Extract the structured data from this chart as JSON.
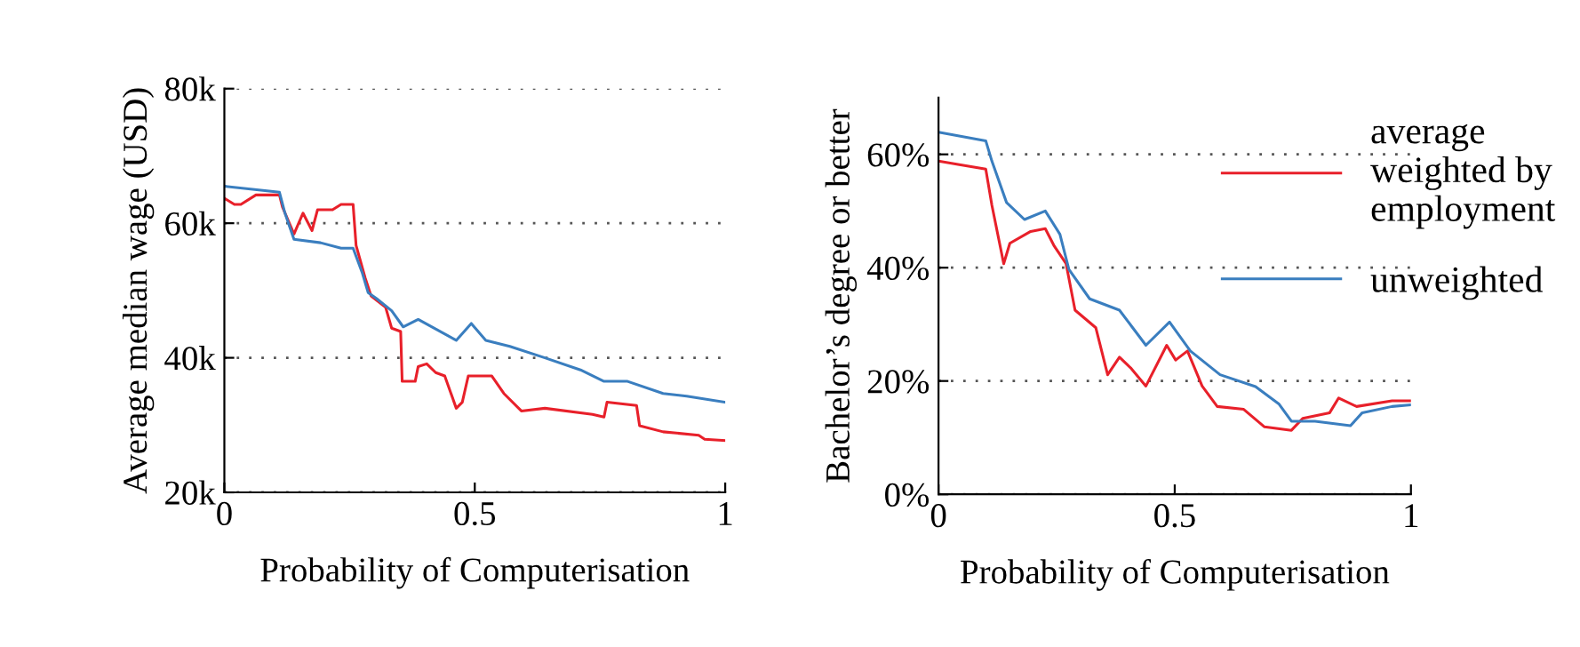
{
  "chart_data": [
    {
      "type": "line",
      "xlabel": "Probability of Computerisation",
      "ylabel": "Average median wage (USD)",
      "xlim": [
        0,
        1
      ],
      "xticks": [
        0,
        {
          "value": 0.5,
          "label": "0.5"
        },
        1
      ],
      "ylim": [
        20,
        80
      ],
      "yticks": [
        {
          "value": 20,
          "label": "20k"
        },
        {
          "value": 40,
          "label": "40k"
        },
        {
          "value": 60,
          "label": "60k"
        },
        {
          "value": 80,
          "label": "80k"
        }
      ],
      "grid": "y",
      "legend": false,
      "series": [
        {
          "color": "#e8202a",
          "x": [
            0,
            0.02,
            0.033,
            0.063,
            0.11,
            0.116,
            0.139,
            0.157,
            0.175,
            0.186,
            0.216,
            0.233,
            0.257,
            0.263,
            0.281,
            0.293,
            0.322,
            0.334,
            0.352,
            0.355,
            0.381,
            0.387,
            0.404,
            0.422,
            0.44,
            0.463,
            0.475,
            0.487,
            0.534,
            0.558,
            0.593,
            0.64,
            0.735,
            0.758,
            0.764,
            0.823,
            0.829,
            0.876,
            0.947,
            0.959,
            1
          ],
          "values": [
            63.7,
            62.8,
            62.8,
            64.2,
            64.2,
            62.4,
            58.4,
            61.5,
            58.9,
            62,
            62,
            62.8,
            62.8,
            56.7,
            51.9,
            49.2,
            47.5,
            44.4,
            43.9,
            36.5,
            36.5,
            38.7,
            39.1,
            37.8,
            37.3,
            32.5,
            33.4,
            37.3,
            37.3,
            34.7,
            32.1,
            32.5,
            31.6,
            31.2,
            33.4,
            32.9,
            29.9,
            29,
            28.5,
            27.9,
            27.7
          ]
        },
        {
          "color": "#3a7ebf",
          "x": [
            0,
            0.11,
            0.121,
            0.139,
            0.192,
            0.233,
            0.257,
            0.275,
            0.287,
            0.304,
            0.334,
            0.357,
            0.387,
            0.463,
            0.493,
            0.522,
            0.57,
            0.64,
            0.711,
            0.758,
            0.805,
            0.876,
            0.923,
            1
          ],
          "values": [
            65.5,
            64.6,
            61.5,
            57.6,
            57.1,
            56.3,
            56.3,
            52.7,
            49.7,
            48.8,
            47,
            44.6,
            45.7,
            42.6,
            45.1,
            42.6,
            41.7,
            40,
            38.2,
            36.5,
            36.5,
            34.7,
            34.3,
            33.4
          ]
        }
      ]
    },
    {
      "type": "line",
      "xlabel": "Probability of Computerisation",
      "ylabel": "Bachelor’s degree or better",
      "xlim": [
        0,
        1
      ],
      "xticks": [
        0,
        {
          "value": 0.5,
          "label": "0.5"
        },
        1
      ],
      "ylim": [
        0,
        70
      ],
      "yticks": [
        {
          "value": 0,
          "label": "0%"
        },
        {
          "value": 20,
          "label": "20%"
        },
        {
          "value": 40,
          "label": "40%"
        },
        {
          "value": 60,
          "label": "60%"
        }
      ],
      "grid": "y",
      "legend": "right",
      "series": [
        {
          "name": "average\nweighted by\nemployment",
          "color": "#e8202a",
          "x": [
            0,
            0.044,
            0.1,
            0.113,
            0.138,
            0.151,
            0.195,
            0.226,
            0.245,
            0.27,
            0.289,
            0.333,
            0.358,
            0.383,
            0.408,
            0.439,
            0.483,
            0.502,
            0.527,
            0.558,
            0.59,
            0.646,
            0.69,
            0.747,
            0.771,
            0.828,
            0.847,
            0.885,
            0.96,
            1
          ],
          "values": [
            58.8,
            58.2,
            57.4,
            51,
            40.7,
            44.3,
            46.4,
            46.9,
            43.8,
            40.7,
            32.5,
            29.4,
            21.1,
            24.2,
            22.2,
            19.1,
            26.3,
            23.7,
            25.3,
            19.1,
            15.5,
            15,
            11.9,
            11.3,
            13.4,
            14.4,
            17,
            15.5,
            16.5,
            16.5
          ]
        },
        {
          "name": "unweighted",
          "color": "#3a7ebf",
          "x": [
            0,
            0.1,
            0.113,
            0.144,
            0.182,
            0.226,
            0.257,
            0.276,
            0.32,
            0.383,
            0.439,
            0.489,
            0.533,
            0.596,
            0.671,
            0.721,
            0.747,
            0.797,
            0.872,
            0.897,
            0.96,
            1
          ],
          "values": [
            63.9,
            62.4,
            58.8,
            51.5,
            48.5,
            50,
            45.9,
            39.7,
            34.5,
            32.5,
            26.3,
            30.4,
            25.3,
            21.1,
            19,
            15.9,
            12.9,
            12.9,
            12.1,
            14.4,
            15.5,
            15.8
          ]
        }
      ]
    }
  ]
}
